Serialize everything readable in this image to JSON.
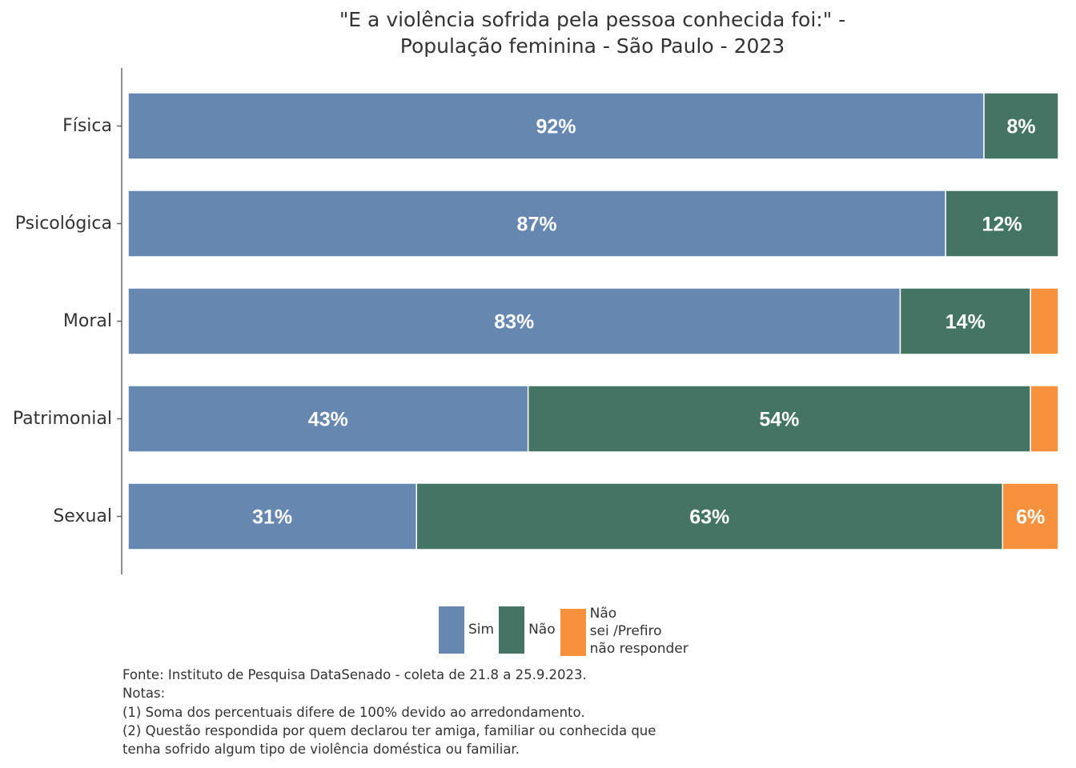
{
  "chart_data": {
    "type": "bar",
    "orientation": "horizontal",
    "stacked": true,
    "title_lines": [
      "\"E a violência sofrida pela pessoa conhecida foi:\" -",
      "População feminina - São Paulo - 2023"
    ],
    "categories": [
      "Física",
      "Psicológica",
      "Moral",
      "Patrimonial",
      "Sexual"
    ],
    "series": [
      {
        "name": "Sim",
        "color": "#6688B0",
        "values": [
          92,
          87,
          83,
          43,
          31
        ],
        "labels": [
          "92%",
          "87%",
          "83%",
          "43%",
          "31%"
        ]
      },
      {
        "name": "Não",
        "color": "#447564",
        "values": [
          8,
          12,
          14,
          54,
          63
        ],
        "labels": [
          "8%",
          "12%",
          "14%",
          "54%",
          "63%"
        ]
      },
      {
        "name": "Não sei /Prefiro não responder",
        "legend_lines": "Não\nsei /Prefiro\nnão responder",
        "color": "#F8913D",
        "values": [
          0,
          0,
          3,
          3,
          6
        ],
        "labels": [
          "",
          "",
          "",
          "",
          "6%"
        ]
      }
    ],
    "xlim": [
      0,
      100
    ],
    "grid": false,
    "legend_position": "bottom"
  },
  "notes": [
    "Fonte: Instituto de Pesquisa DataSenado - coleta de 21.8 a 25.9.2023.",
    "Notas:",
    "(1) Soma dos percentuais difere de 100% devido ao arredondamento.",
    "(2) Questão respondida por quem declarou ter amiga, familiar ou conhecida que",
    "tenha sofrido algum tipo de violência doméstica ou familiar."
  ]
}
